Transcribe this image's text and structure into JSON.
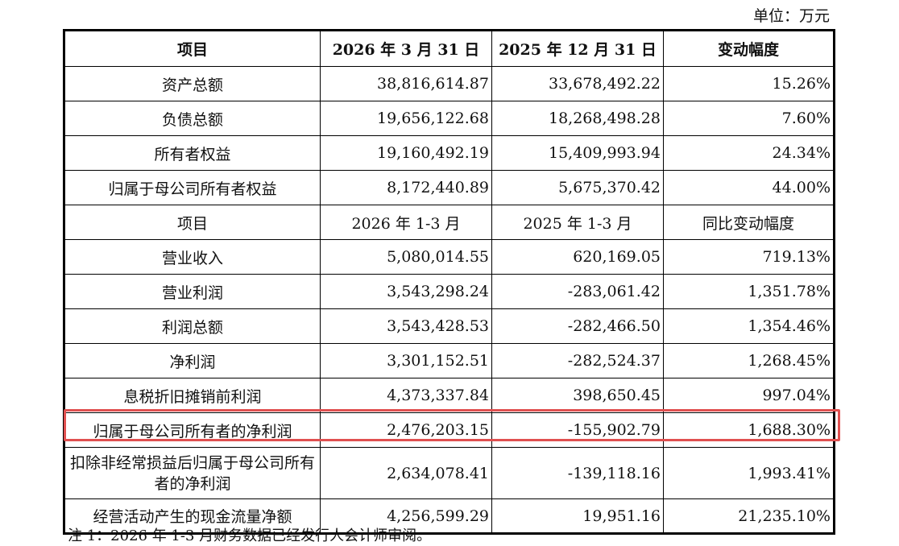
{
  "unit_label": "单位：万元",
  "header": [
    "项目",
    "2026 年 3 月 31 日",
    "2025 年 12 月 31 日",
    "变动幅度"
  ],
  "balance_rows": [
    {
      "item": "资产总额",
      "current": "38,816,614.87",
      "previous": "33,678,492.22",
      "change": "15.26%"
    },
    {
      "item": "负债总额",
      "current": "19,656,122.68",
      "previous": "18,268,498.28",
      "change": "7.60%"
    },
    {
      "item": "所有者权益",
      "current": "19,160,492.19",
      "previous": "15,409,993.94",
      "change": "24.34%"
    },
    {
      "item": "归属于母公司所有者权益",
      "current": "8,172,440.89",
      "previous": "5,675,370.42",
      "change": "44.00%"
    }
  ],
  "subheader": [
    "项目",
    "2026 年 1-3 月",
    "2025 年 1-3 月",
    "同比变动幅度"
  ],
  "income_rows": [
    {
      "item": "营业收入",
      "current": "5,080,014.55",
      "previous": "620,169.05",
      "change": "719.13%"
    },
    {
      "item": "营业利润",
      "current": "3,543,298.24",
      "previous": "-283,061.42",
      "change": "1,351.78%"
    },
    {
      "item": "利润总额",
      "current": "3,543,428.53",
      "previous": "-282,466.50",
      "change": "1,354.46%"
    },
    {
      "item": "净利润",
      "current": "3,301,152.51",
      "previous": "-282,524.37",
      "change": "1,268.45%"
    },
    {
      "item": "息税折旧摊销前利润",
      "current": "4,373,337.84",
      "previous": "398,650.45",
      "change": "997.04%"
    },
    {
      "item": "归属于母公司所有者的净利润",
      "current": "2,476,203.15",
      "previous": "-155,902.79",
      "change": "1,688.30%"
    },
    {
      "item": "扣除非经常损益后归属于母公司所有者的净利润",
      "current": "2,634,078.41",
      "previous": "-139,118.16",
      "change": "1,993.41%"
    },
    {
      "item": "经营活动产生的现金流量净额",
      "current": "4,256,599.29",
      "previous": "19,951.16",
      "change": "21,235.10%"
    }
  ],
  "footnote": "注 1：2026 年 1-3 月财务数据已经发行人会计师审阅。"
}
